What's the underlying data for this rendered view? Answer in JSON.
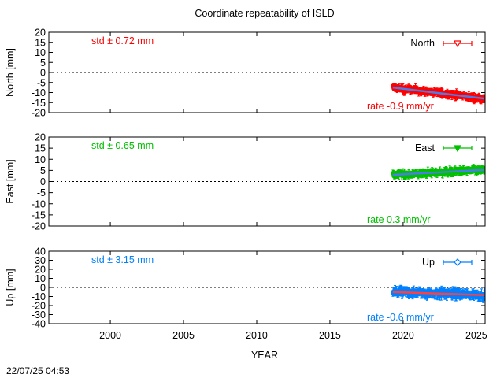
{
  "title": "Coordinate repeatability of ISLD",
  "timestamp": "22/07/25 04:53",
  "chart_data": [
    {
      "type": "scatter",
      "component": "north",
      "ylabel": "North [mm]",
      "xlabel": "",
      "xlim": [
        1995.8,
        2025.6
      ],
      "ylim": [
        -20,
        20
      ],
      "yticks": [
        20,
        15,
        10,
        5,
        0,
        -5,
        -10,
        -15,
        -20
      ],
      "xticks": [
        2000,
        2005,
        2010,
        2015,
        2020,
        2025
      ],
      "show_xtick_labels": false,
      "color": "#ff0000",
      "trend_color": "#4a7de8",
      "legend": {
        "label": "North",
        "marker": "triangle-down-open",
        "position": "top-right"
      },
      "std_text": "std ± 0.72 mm",
      "rate_text": "rate -0.9 mm/yr",
      "x_range": [
        2019.3,
        2025.55
      ],
      "trend": {
        "x": [
          2019.3,
          2025.55
        ],
        "y": [
          -7.5,
          -13.0
        ]
      },
      "noise": 1.6,
      "errorbar": 1.3
    },
    {
      "type": "scatter",
      "component": "east",
      "ylabel": "East [mm]",
      "xlabel": "",
      "xlim": [
        1995.8,
        2025.6
      ],
      "ylim": [
        -20,
        20
      ],
      "yticks": [
        20,
        15,
        10,
        5,
        0,
        -5,
        -10,
        -15,
        -20
      ],
      "xticks": [
        2000,
        2005,
        2010,
        2015,
        2020,
        2025
      ],
      "show_xtick_labels": false,
      "color": "#00c000",
      "trend_color": "#4a7de8",
      "legend": {
        "label": "East",
        "marker": "triangle-down-filled",
        "position": "top-right"
      },
      "std_text": "std ± 0.65 mm",
      "rate_text": "rate  0.3 mm/yr",
      "x_range": [
        2019.3,
        2025.55
      ],
      "trend": {
        "x": [
          2019.3,
          2025.55
        ],
        "y": [
          3.0,
          5.2
        ]
      },
      "noise": 1.4,
      "errorbar": 1.2
    },
    {
      "type": "scatter",
      "component": "up",
      "ylabel": "Up [mm]",
      "xlabel": "YEAR",
      "xlim": [
        1995.8,
        2025.6
      ],
      "ylim": [
        -40,
        40
      ],
      "yticks": [
        40,
        30,
        20,
        10,
        0,
        -10,
        -20,
        -30,
        -40
      ],
      "xticks": [
        2000,
        2005,
        2010,
        2015,
        2020,
        2025
      ],
      "show_xtick_labels": true,
      "color": "#0080ff",
      "trend_color": "#ff4040",
      "legend": {
        "label": "Up",
        "marker": "diamond-open",
        "position": "top-right"
      },
      "std_text": "std ± 3.15 mm",
      "rate_text": "rate -0.6 mm/yr",
      "x_range": [
        2019.3,
        2025.55
      ],
      "trend": {
        "x": [
          2019.3,
          2025.55
        ],
        "y": [
          -5.0,
          -8.5
        ]
      },
      "noise": 4.5,
      "errorbar": 3.5
    }
  ]
}
